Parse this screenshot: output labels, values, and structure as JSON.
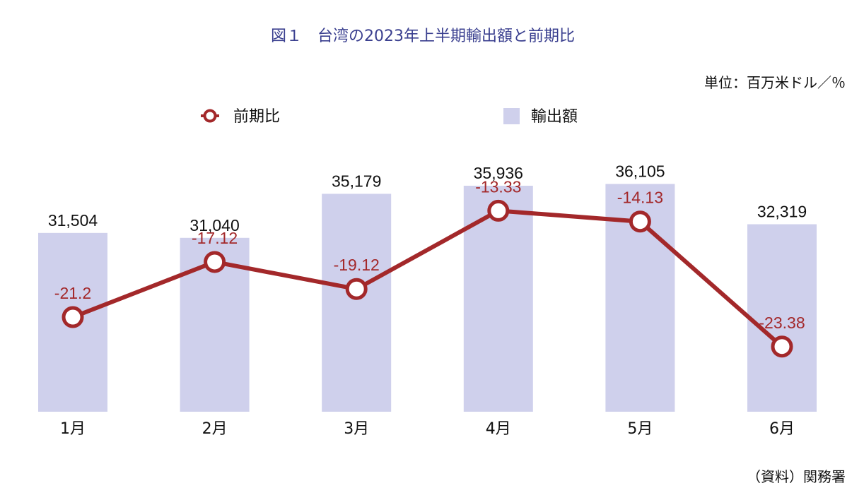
{
  "chart_data": {
    "type": "bar",
    "title": "図１　台湾の2023年上半期輸出額と前期比",
    "unit_label": "単位：百万米ドル／％",
    "source": "（資料）関務署",
    "legend_position": "top",
    "categories": [
      "1月",
      "2月",
      "3月",
      "4月",
      "5月",
      "6月"
    ],
    "series": [
      {
        "name": "輸出額",
        "type": "bar",
        "color": "#cfd0ec",
        "values": [
          31504,
          31040,
          35179,
          35936,
          36105,
          32319
        ],
        "labels": [
          "31,504",
          "31,040",
          "35,179",
          "35,936",
          "36,105",
          "32,319"
        ],
        "axis": "left"
      },
      {
        "name": "前期比",
        "type": "line",
        "color": "#a3282a",
        "values": [
          -21.2,
          -17.12,
          -19.12,
          -13.33,
          -14.13,
          -23.38
        ],
        "labels": [
          "-21.2",
          "-17.12",
          "-19.12",
          "-13.33",
          "-14.13",
          "-23.38"
        ],
        "axis": "right"
      }
    ],
    "bar_axis_range": [
      14700,
      36800
    ],
    "line_axis_range": [
      -28.2,
      -10.8
    ],
    "grid": false
  }
}
